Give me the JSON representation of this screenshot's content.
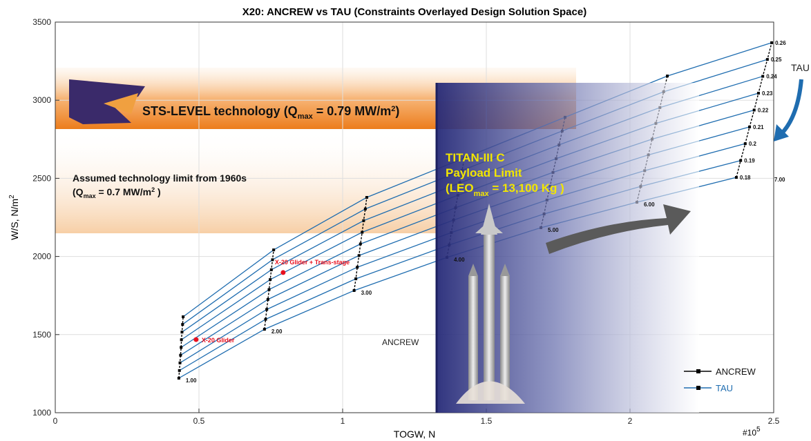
{
  "chart_data": {
    "type": "carpet",
    "title": "X20: ANCREW vs TAU  (Constraints Overlayed Design Solution Space)",
    "x_label": "TOGW, N",
    "x_multiplier": {
      "base": "#10",
      "exponent": "5"
    },
    "y_label": {
      "text": "W/S, N/m",
      "sup": "2"
    },
    "xlim": [
      0,
      2.5
    ],
    "xticks": [
      0,
      0.5,
      1,
      1.5,
      2,
      2.5
    ],
    "ylim": [
      1000,
      3500
    ],
    "yticks": [
      1000,
      1500,
      2000,
      2500,
      3000,
      3500
    ],
    "grid": true,
    "legend": "lower right",
    "series": [
      {
        "name": "ANCREW",
        "color": "#000000"
      },
      {
        "name": "TAU",
        "color": "#1f6db0"
      }
    ],
    "ancrew": [
      {
        "value": 1,
        "label": "1.00"
      },
      {
        "value": 2,
        "label": "2.00"
      },
      {
        "value": 3,
        "label": "3.00"
      },
      {
        "value": 4,
        "label": "4.00"
      },
      {
        "value": 5,
        "label": "5.00"
      },
      {
        "value": 6,
        "label": "6.00"
      },
      {
        "value": 7,
        "label": "7.00"
      }
    ],
    "tau": [
      0.18,
      0.19,
      0.2,
      0.21,
      0.22,
      0.23,
      0.24,
      0.25,
      0.26
    ],
    "carpet_x": [
      [
        0.43,
        0.432,
        0.434,
        0.436,
        0.438,
        0.439,
        0.441,
        0.443,
        0.445
      ],
      [
        0.728,
        0.732,
        0.736,
        0.74,
        0.744,
        0.748,
        0.752,
        0.756,
        0.76
      ],
      [
        1.04,
        1.046,
        1.051,
        1.057,
        1.062,
        1.068,
        1.073,
        1.079,
        1.084
      ],
      [
        1.363,
        1.371,
        1.378,
        1.386,
        1.393,
        1.401,
        1.408,
        1.416,
        1.423
      ],
      [
        1.69,
        1.701,
        1.711,
        1.722,
        1.732,
        1.743,
        1.753,
        1.764,
        1.774
      ],
      [
        2.024,
        2.037,
        2.051,
        2.064,
        2.077,
        2.09,
        2.104,
        2.117,
        2.13
      ],
      [
        2.37,
        2.385,
        2.401,
        2.416,
        2.432,
        2.447,
        2.462,
        2.478,
        2.493
      ]
    ],
    "carpet_y": [
      [
        1221,
        1270,
        1319,
        1368,
        1418,
        1467,
        1516,
        1565,
        1614
      ],
      [
        1534,
        1598,
        1661,
        1725,
        1788,
        1852,
        1915,
        1979,
        2042
      ],
      [
        1782,
        1857,
        1931,
        2006,
        2080,
        2155,
        2229,
        2304,
        2378
      ],
      [
        1994,
        2074,
        2153,
        2233,
        2312,
        2392,
        2471,
        2551,
        2630
      ],
      [
        2184,
        2272,
        2361,
        2449,
        2538,
        2626,
        2714,
        2803,
        2891
      ],
      [
        2347,
        2448,
        2549,
        2650,
        2751,
        2852,
        2953,
        3054,
        3155
      ],
      [
        2506,
        2614,
        2722,
        2829,
        2937,
        3045,
        3153,
        3261,
        3368
      ]
    ],
    "design_points": {
      "color": "#e8101e",
      "names": [
        "X-20 Glider",
        "X-20 Glider + Trans-stage"
      ],
      "x": [
        0.49,
        0.793
      ],
      "y": [
        1468,
        1897
      ]
    },
    "annotations": {
      "sts": {
        "a": "STS-LEVEL technology (Q",
        "sub": "max",
        "b": " = 0.79 MW/m",
        "sup": "2",
        "c": ")"
      },
      "limit_1960": {
        "line1": "Assumed technology limit from 1960s",
        "a": "(Q",
        "sub": "max",
        "b": " = 0.7 MW/m",
        "sup": "2",
        "c": " )"
      },
      "titan": {
        "line1": "TITAN-III C",
        "line2": "Payload Limit",
        "a": "(LEO",
        "sub": "max",
        "b": " = 13,100 Kg )"
      },
      "ancrew_region": "ANCREW",
      "tau_arrow": "TAU"
    }
  }
}
